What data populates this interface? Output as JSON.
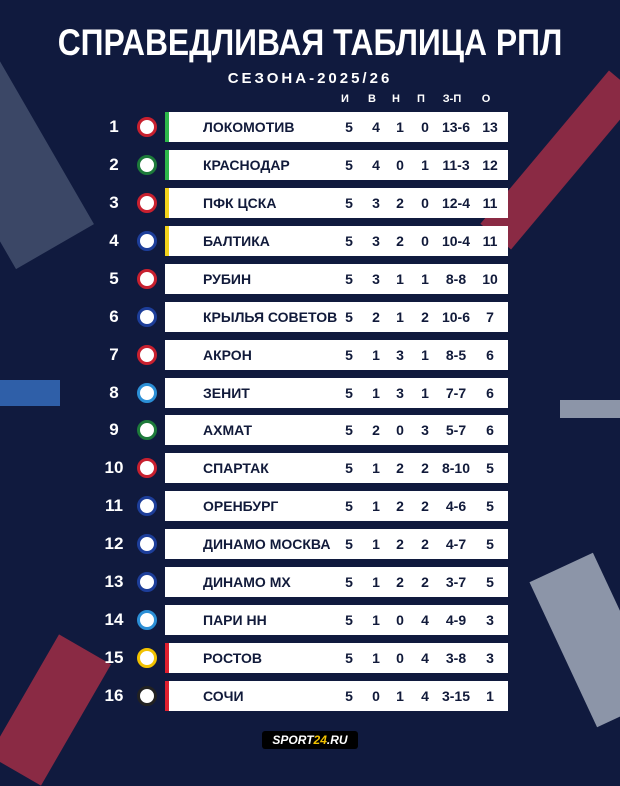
{
  "title": "СПРАВЕДЛИВАЯ ТАБЛИЦА РПЛ",
  "subtitle": "СЕЗОНА-2025/26",
  "headers": [
    "И",
    "В",
    "Н",
    "П",
    "З-П",
    "О"
  ],
  "rows": [
    {
      "pos": "1",
      "team": "ЛОКОМОТИВ",
      "stats": [
        "5",
        "4",
        "1",
        "0",
        "13-6",
        "13"
      ],
      "zone": "#2db84a",
      "logo": "#c8202f"
    },
    {
      "pos": "2",
      "team": "КРАСНОДАР",
      "stats": [
        "5",
        "4",
        "0",
        "1",
        "11-3",
        "12"
      ],
      "zone": "#2db84a",
      "logo": "#1d7a3a"
    },
    {
      "pos": "3",
      "team": "ПФК ЦСКА",
      "stats": [
        "5",
        "3",
        "2",
        "0",
        "12-4",
        "11"
      ],
      "zone": "#f2d21b",
      "logo": "#c8202f"
    },
    {
      "pos": "4",
      "team": "БАЛТИКА",
      "stats": [
        "5",
        "3",
        "2",
        "0",
        "10-4",
        "11"
      ],
      "zone": "#f2d21b",
      "logo": "#1d3e9a"
    },
    {
      "pos": "5",
      "team": "РУБИН",
      "stats": [
        "5",
        "3",
        "1",
        "1",
        "8-8",
        "10"
      ],
      "zone": "",
      "logo": "#c8202f"
    },
    {
      "pos": "6",
      "team": "КРЫЛЬЯ СОВЕТОВ",
      "stats": [
        "5",
        "2",
        "1",
        "2",
        "10-6",
        "7"
      ],
      "zone": "",
      "logo": "#1d3e9a"
    },
    {
      "pos": "7",
      "team": "АКРОН",
      "stats": [
        "5",
        "1",
        "3",
        "1",
        "8-5",
        "6"
      ],
      "zone": "",
      "logo": "#c8202f"
    },
    {
      "pos": "8",
      "team": "ЗЕНИТ",
      "stats": [
        "5",
        "1",
        "3",
        "1",
        "7-7",
        "6"
      ],
      "zone": "",
      "logo": "#2b8fd6"
    },
    {
      "pos": "9",
      "team": "АХМАТ",
      "stats": [
        "5",
        "2",
        "0",
        "3",
        "5-7",
        "6"
      ],
      "zone": "",
      "logo": "#1d7a3a"
    },
    {
      "pos": "10",
      "team": "СПАРТАК",
      "stats": [
        "5",
        "1",
        "2",
        "2",
        "8-10",
        "5"
      ],
      "zone": "",
      "logo": "#c8202f"
    },
    {
      "pos": "11",
      "team": "ОРЕНБУРГ",
      "stats": [
        "5",
        "1",
        "2",
        "2",
        "4-6",
        "5"
      ],
      "zone": "",
      "logo": "#1d3e9a"
    },
    {
      "pos": "12",
      "team": "ДИНАМО МОСКВА",
      "stats": [
        "5",
        "1",
        "2",
        "2",
        "4-7",
        "5"
      ],
      "zone": "",
      "logo": "#1d3e9a"
    },
    {
      "pos": "13",
      "team": "ДИНАМО МХ",
      "stats": [
        "5",
        "1",
        "2",
        "2",
        "3-7",
        "5"
      ],
      "zone": "",
      "logo": "#1d3e9a"
    },
    {
      "pos": "14",
      "team": "ПАРИ НН",
      "stats": [
        "5",
        "1",
        "0",
        "4",
        "4-9",
        "3"
      ],
      "zone": "",
      "logo": "#2b8fd6"
    },
    {
      "pos": "15",
      "team": "РОСТОВ",
      "stats": [
        "5",
        "1",
        "0",
        "4",
        "3-8",
        "3"
      ],
      "zone": "#e0202f",
      "logo": "#f2c200"
    },
    {
      "pos": "16",
      "team": "СОЧИ",
      "stats": [
        "5",
        "0",
        "1",
        "4",
        "3-15",
        "1"
      ],
      "zone": "#e0202f",
      "logo": "#222222"
    }
  ],
  "footer": {
    "brand_a": "SPORT",
    "brand_b": "24",
    "brand_c": ".RU"
  }
}
